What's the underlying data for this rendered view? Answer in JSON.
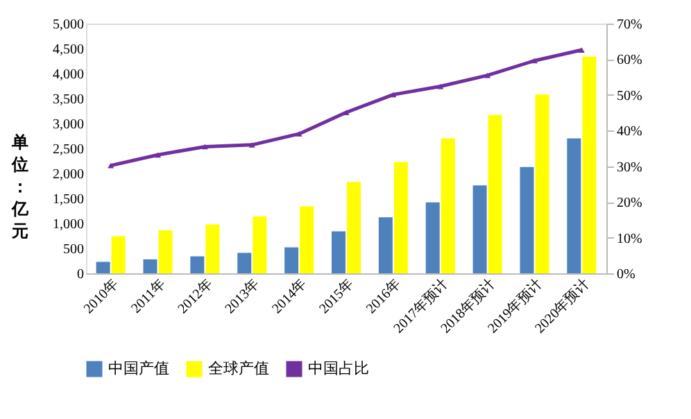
{
  "chart_data": {
    "type": "bar",
    "ylabel": "单位：亿元",
    "categories": [
      "2010年",
      "2011年",
      "2012年",
      "2013年",
      "2014年",
      "2015年",
      "2016年",
      "2017年预计",
      "2018年预计",
      "2019年预计",
      "2020年预计"
    ],
    "series": [
      {
        "name": "中国产值",
        "color": "#4f81bd",
        "values": [
          230,
          280,
          340,
          410,
          520,
          840,
          1120,
          1420,
          1760,
          2130,
          2700
        ]
      },
      {
        "name": "全球产值",
        "color": "#ffff00",
        "values": [
          740,
          860,
          980,
          1140,
          1340,
          1830,
          2230,
          2700,
          3170,
          3580,
          4340
        ]
      },
      {
        "name": "中国占比",
        "color": "#7030a0",
        "type": "line",
        "axis": "y2",
        "marker": "triangle",
        "values": [
          30.2,
          33.2,
          35.5,
          36.0,
          39.1,
          45.1,
          50.1,
          52.4,
          55.5,
          59.6,
          62.6
        ]
      }
    ],
    "ylim": [
      0,
      5000
    ],
    "yticks": [
      0,
      {
        "value": 500,
        "label": "500"
      },
      {
        "value": 1000,
        "label": "1,000"
      },
      {
        "value": 1500,
        "label": "1,500"
      },
      {
        "value": 2000,
        "label": "2,000"
      },
      {
        "value": 2500,
        "label": "2,500"
      },
      {
        "value": 3000,
        "label": "3,000"
      },
      {
        "value": 3500,
        "label": "3,500"
      },
      {
        "value": 4000,
        "label": "4,000"
      },
      {
        "value": 4500,
        "label": "4,500"
      },
      {
        "value": 5000,
        "label": "5,000"
      }
    ],
    "y2lim": [
      0,
      70
    ],
    "y2ticks": [
      {
        "value": 0,
        "label": "0%"
      },
      {
        "value": 10,
        "label": "10%"
      },
      {
        "value": 20,
        "label": "20%"
      },
      {
        "value": 30,
        "label": "30%"
      },
      {
        "value": 40,
        "label": "40%"
      },
      {
        "value": 50,
        "label": "50%"
      },
      {
        "value": 60,
        "label": "60%"
      },
      {
        "value": 70,
        "label": "70%"
      }
    ],
    "grid": false,
    "legend": "bottom"
  }
}
